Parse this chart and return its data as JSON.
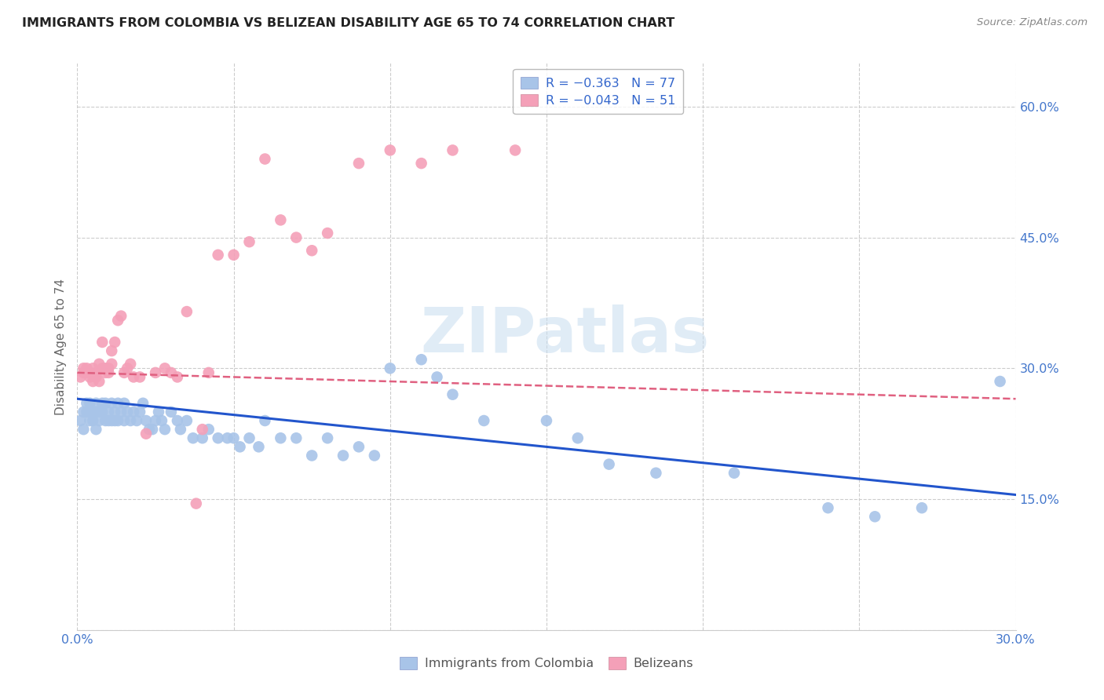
{
  "title": "IMMIGRANTS FROM COLOMBIA VS BELIZEAN DISABILITY AGE 65 TO 74 CORRELATION CHART",
  "source": "Source: ZipAtlas.com",
  "ylabel": "Disability Age 65 to 74",
  "xlim": [
    0.0,
    0.3
  ],
  "ylim": [
    0.0,
    0.65
  ],
  "xtick_positions": [
    0.0,
    0.05,
    0.1,
    0.15,
    0.2,
    0.25,
    0.3
  ],
  "xticklabels": [
    "0.0%",
    "",
    "",
    "",
    "",
    "",
    "30.0%"
  ],
  "ytick_positions": [
    0.0,
    0.15,
    0.3,
    0.45,
    0.6
  ],
  "yticklabels": [
    "",
    "15.0%",
    "30.0%",
    "45.0%",
    "60.0%"
  ],
  "colombia_color": "#a8c4e8",
  "belize_color": "#f4a0b8",
  "colombia_line_color": "#2255cc",
  "belize_line_color": "#e06080",
  "watermark": "ZIPatlas",
  "colombia_x": [
    0.001,
    0.002,
    0.002,
    0.003,
    0.003,
    0.004,
    0.004,
    0.005,
    0.005,
    0.006,
    0.006,
    0.006,
    0.007,
    0.007,
    0.008,
    0.008,
    0.009,
    0.009,
    0.01,
    0.01,
    0.011,
    0.011,
    0.012,
    0.012,
    0.013,
    0.013,
    0.014,
    0.015,
    0.015,
    0.016,
    0.017,
    0.018,
    0.019,
    0.02,
    0.021,
    0.022,
    0.023,
    0.024,
    0.025,
    0.026,
    0.027,
    0.028,
    0.03,
    0.032,
    0.033,
    0.035,
    0.037,
    0.04,
    0.042,
    0.045,
    0.048,
    0.05,
    0.052,
    0.055,
    0.058,
    0.06,
    0.065,
    0.07,
    0.075,
    0.08,
    0.085,
    0.09,
    0.095,
    0.1,
    0.11,
    0.115,
    0.12,
    0.13,
    0.15,
    0.16,
    0.17,
    0.185,
    0.21,
    0.24,
    0.255,
    0.27,
    0.295
  ],
  "colombia_y": [
    0.24,
    0.25,
    0.23,
    0.26,
    0.25,
    0.24,
    0.26,
    0.25,
    0.24,
    0.26,
    0.25,
    0.23,
    0.25,
    0.24,
    0.26,
    0.25,
    0.24,
    0.26,
    0.25,
    0.24,
    0.26,
    0.24,
    0.25,
    0.24,
    0.26,
    0.24,
    0.25,
    0.26,
    0.24,
    0.25,
    0.24,
    0.25,
    0.24,
    0.25,
    0.26,
    0.24,
    0.23,
    0.23,
    0.24,
    0.25,
    0.24,
    0.23,
    0.25,
    0.24,
    0.23,
    0.24,
    0.22,
    0.22,
    0.23,
    0.22,
    0.22,
    0.22,
    0.21,
    0.22,
    0.21,
    0.24,
    0.22,
    0.22,
    0.2,
    0.22,
    0.2,
    0.21,
    0.2,
    0.3,
    0.31,
    0.29,
    0.27,
    0.24,
    0.24,
    0.22,
    0.19,
    0.18,
    0.18,
    0.14,
    0.13,
    0.14,
    0.285
  ],
  "belize_x": [
    0.001,
    0.002,
    0.002,
    0.003,
    0.003,
    0.004,
    0.004,
    0.005,
    0.005,
    0.006,
    0.006,
    0.007,
    0.007,
    0.008,
    0.008,
    0.009,
    0.009,
    0.01,
    0.01,
    0.011,
    0.011,
    0.012,
    0.013,
    0.014,
    0.015,
    0.016,
    0.017,
    0.018,
    0.02,
    0.022,
    0.025,
    0.028,
    0.03,
    0.032,
    0.035,
    0.038,
    0.04,
    0.042,
    0.045,
    0.05,
    0.055,
    0.06,
    0.065,
    0.07,
    0.075,
    0.08,
    0.09,
    0.1,
    0.11,
    0.12,
    0.14
  ],
  "belize_y": [
    0.29,
    0.3,
    0.295,
    0.295,
    0.3,
    0.295,
    0.29,
    0.285,
    0.3,
    0.29,
    0.295,
    0.285,
    0.305,
    0.3,
    0.33,
    0.295,
    0.3,
    0.295,
    0.3,
    0.32,
    0.305,
    0.33,
    0.355,
    0.36,
    0.295,
    0.3,
    0.305,
    0.29,
    0.29,
    0.225,
    0.295,
    0.3,
    0.295,
    0.29,
    0.365,
    0.145,
    0.23,
    0.295,
    0.43,
    0.43,
    0.445,
    0.54,
    0.47,
    0.45,
    0.435,
    0.455,
    0.535,
    0.55,
    0.535,
    0.55,
    0.55
  ]
}
